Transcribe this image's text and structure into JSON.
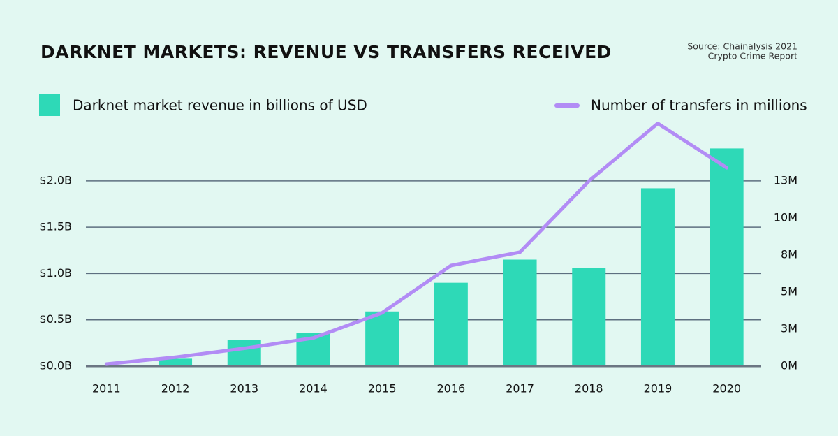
{
  "chart_data": {
    "type": "bar_line",
    "title": "DARKNET MARKETS: REVENUE VS TRANSFERS RECEIVED",
    "source": [
      "Source: Chainalysis 2021",
      "Crypto Crime Report"
    ],
    "categories": [
      "2011",
      "2012",
      "2013",
      "2014",
      "2015",
      "2016",
      "2017",
      "2018",
      "2019",
      "2020"
    ],
    "series": [
      {
        "name": "Darknet market revenue in billions of USD",
        "type": "bar",
        "color": "#2ed9b7",
        "values": [
          0.01,
          0.08,
          0.28,
          0.36,
          0.59,
          0.9,
          1.15,
          1.06,
          1.92,
          2.35
        ]
      },
      {
        "name": "Number of transfers in millions",
        "type": "line",
        "color": "#b28cf5",
        "axis": "y2",
        "values": [
          0.14,
          0.6,
          1.2,
          1.9,
          3.6,
          6.8,
          7.7,
          12.5,
          16.4,
          13.4
        ]
      }
    ],
    "ylim": [
      0,
      2.7
    ],
    "yticks": [
      {
        "value": 0,
        "label": "$0.0B"
      },
      {
        "value": 0.5,
        "label": "$0.5B"
      },
      {
        "value": 1,
        "label": "$1.0B"
      },
      {
        "value": 1.5,
        "label": "$1.5B"
      },
      {
        "value": 2,
        "label": "$2.0B"
      }
    ],
    "y2lim": [
      0,
      16.9
    ],
    "y2ticks": [
      {
        "value": 0,
        "label": "0M"
      },
      {
        "value": 2.5,
        "label": "3M"
      },
      {
        "value": 5,
        "label": "5M"
      },
      {
        "value": 7.5,
        "label": "8M"
      },
      {
        "value": 10,
        "label": "10M"
      },
      {
        "value": 12.5,
        "label": "13M"
      }
    ],
    "grid": true
  }
}
